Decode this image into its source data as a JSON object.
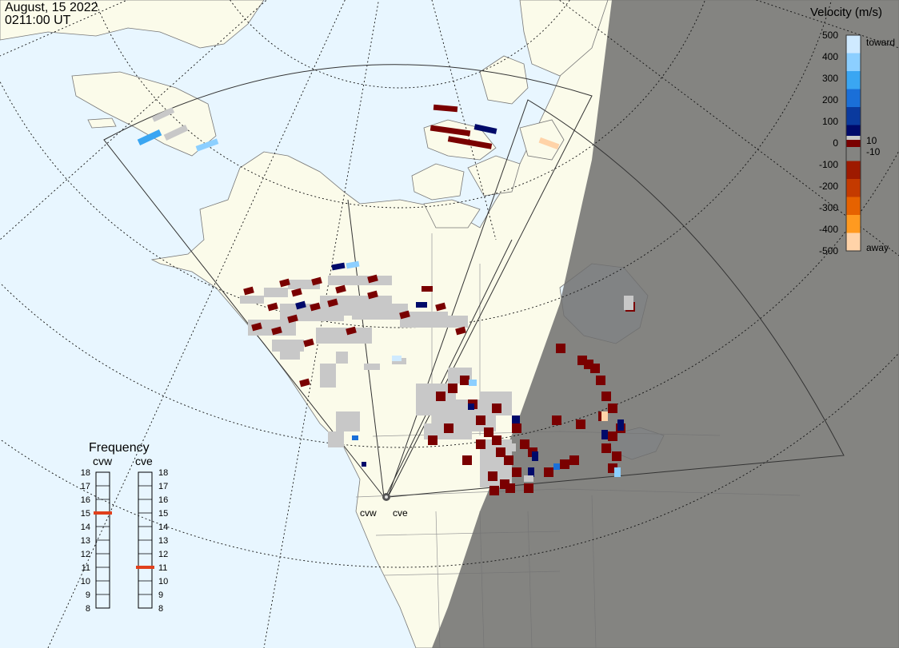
{
  "header": {
    "date": "August, 15 2022",
    "time": "0211:00 UT"
  },
  "velocity_legend": {
    "title": "Velocity (m/s)",
    "ticks": [
      "500",
      "400",
      "300",
      "200",
      "100",
      "10",
      "0",
      "-10",
      "-100",
      "-200",
      "-300",
      "-400",
      "-500"
    ],
    "toward_label": "toward",
    "away_label": "away",
    "colors": [
      "#cfeaff",
      "#8ccfff",
      "#3aa6f2",
      "#1a6fd8",
      "#0a3a9e",
      "#000a6a",
      "#7a0000",
      "#9e1a00",
      "#c43a00",
      "#e66200",
      "#ff9a20",
      "#ffd3a8"
    ],
    "ground_scatter_color": "#c8c8c8"
  },
  "frequency_legend": {
    "title": "Frequency",
    "left_label": "cvw",
    "right_label": "cve",
    "ticks": [
      "18",
      "17",
      "16",
      "15",
      "14",
      "13",
      "12",
      "11",
      "10",
      "9",
      "8"
    ],
    "cvw_value": 15,
    "cve_value": 11,
    "marker_color": "#e0401c"
  },
  "radars": {
    "west_label": "cvw",
    "east_label": "cve"
  },
  "colors": {
    "ocean": "#e8f6ff",
    "land": "#fbfbea",
    "night": "#7a7a7a"
  }
}
